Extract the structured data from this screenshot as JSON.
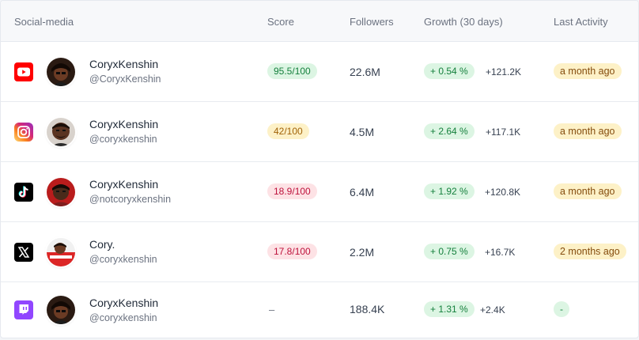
{
  "table": {
    "columns": {
      "social_media": "Social-media",
      "score": "Score",
      "followers": "Followers",
      "growth": "Growth (30 days)",
      "last_activity": "Last Activity"
    },
    "rows": [
      {
        "platform_icon": "youtube-icon",
        "name": "CoryxKenshin",
        "handle": "@CoryxKenshin",
        "score": "95.5/100",
        "followers": "22.6M",
        "growth_percent": "+ 0.54 %",
        "growth_delta": "+121.2K",
        "last_activity": "a month ago"
      },
      {
        "platform_icon": "instagram-icon",
        "name": "CoryxKenshin",
        "handle": "@coryxkenshin",
        "score": "42/100",
        "followers": "4.5M",
        "growth_percent": "+ 2.64 %",
        "growth_delta": "+117.1K",
        "last_activity": "a month ago"
      },
      {
        "platform_icon": "tiktok-icon",
        "name": "CoryxKenshin",
        "handle": "@notcoryxkenshin",
        "score": "18.9/100",
        "followers": "6.4M",
        "growth_percent": "+ 1.92 %",
        "growth_delta": "+120.8K",
        "last_activity": "a month ago"
      },
      {
        "platform_icon": "x-icon",
        "name": "Cory.",
        "handle": "@coryxkenshin",
        "score": "17.8/100",
        "followers": "2.2M",
        "growth_percent": "+ 0.75 %",
        "growth_delta": "+16.7K",
        "last_activity": "2 months ago"
      },
      {
        "platform_icon": "twitch-icon",
        "name": "CoryxKenshin",
        "handle": "@coryxkenshin",
        "score": "–",
        "followers": "188.4K",
        "growth_percent": "+ 1.31 %",
        "growth_delta": "+2.4K",
        "last_activity": "-"
      }
    ]
  },
  "colors": {
    "score_good": "#dcf5e3",
    "score_mid": "#fdf1c7",
    "score_low": "#fde2e5",
    "youtube": "#ff0000",
    "twitch": "#9146ff"
  }
}
